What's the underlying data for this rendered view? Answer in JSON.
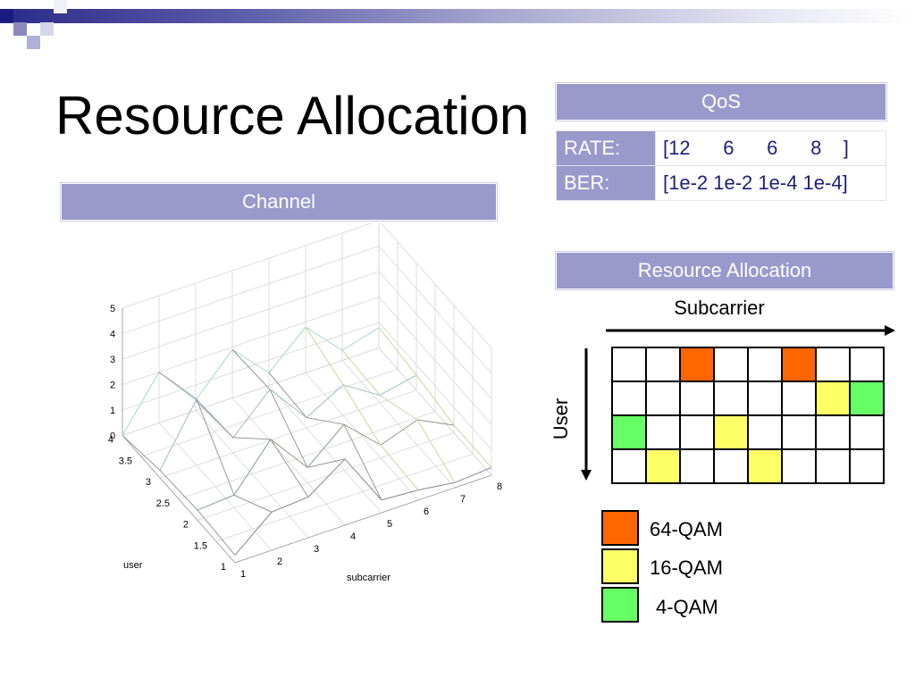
{
  "slide": {
    "title": "Resource Allocation"
  },
  "channel": {
    "header": "Channel",
    "axis_labels": {
      "user": "user",
      "subcarrier": "subcarrier"
    },
    "z_ticks": [
      "0",
      "1",
      "2",
      "3",
      "4",
      "5"
    ],
    "user_ticks": [
      "1",
      "1.5",
      "2",
      "2.5",
      "3",
      "3.5",
      "4"
    ],
    "subcarrier_ticks": [
      "1",
      "2",
      "3",
      "4",
      "5",
      "6",
      "7",
      "8"
    ]
  },
  "qos": {
    "header": "QoS",
    "rows": [
      {
        "label": "RATE:",
        "value": "[12      6      6      8    ]"
      },
      {
        "label": "BER:",
        "value": "[1e-2 1e-2 1e-4 1e-4]"
      }
    ]
  },
  "allocation": {
    "header": "Resource Allocation",
    "subcarrier_label": "Subcarrier",
    "user_label": "User",
    "grid": [
      [
        "",
        "",
        "64-QAM",
        "",
        "",
        "64-QAM",
        "",
        ""
      ],
      [
        "",
        "",
        "",
        "",
        "",
        "",
        "16-QAM",
        "4-QAM"
      ],
      [
        "4-QAM",
        "",
        "",
        "16-QAM",
        "",
        "",
        "",
        ""
      ],
      [
        "",
        "16-QAM",
        "",
        "",
        "16-QAM",
        "",
        "",
        ""
      ]
    ],
    "legend": [
      {
        "label": "64-QAM",
        "color": "#ff6600"
      },
      {
        "label": "16-QAM",
        "color": "#ffff66"
      },
      {
        "label": "4-QAM",
        "color": "#66ff66"
      }
    ]
  }
}
